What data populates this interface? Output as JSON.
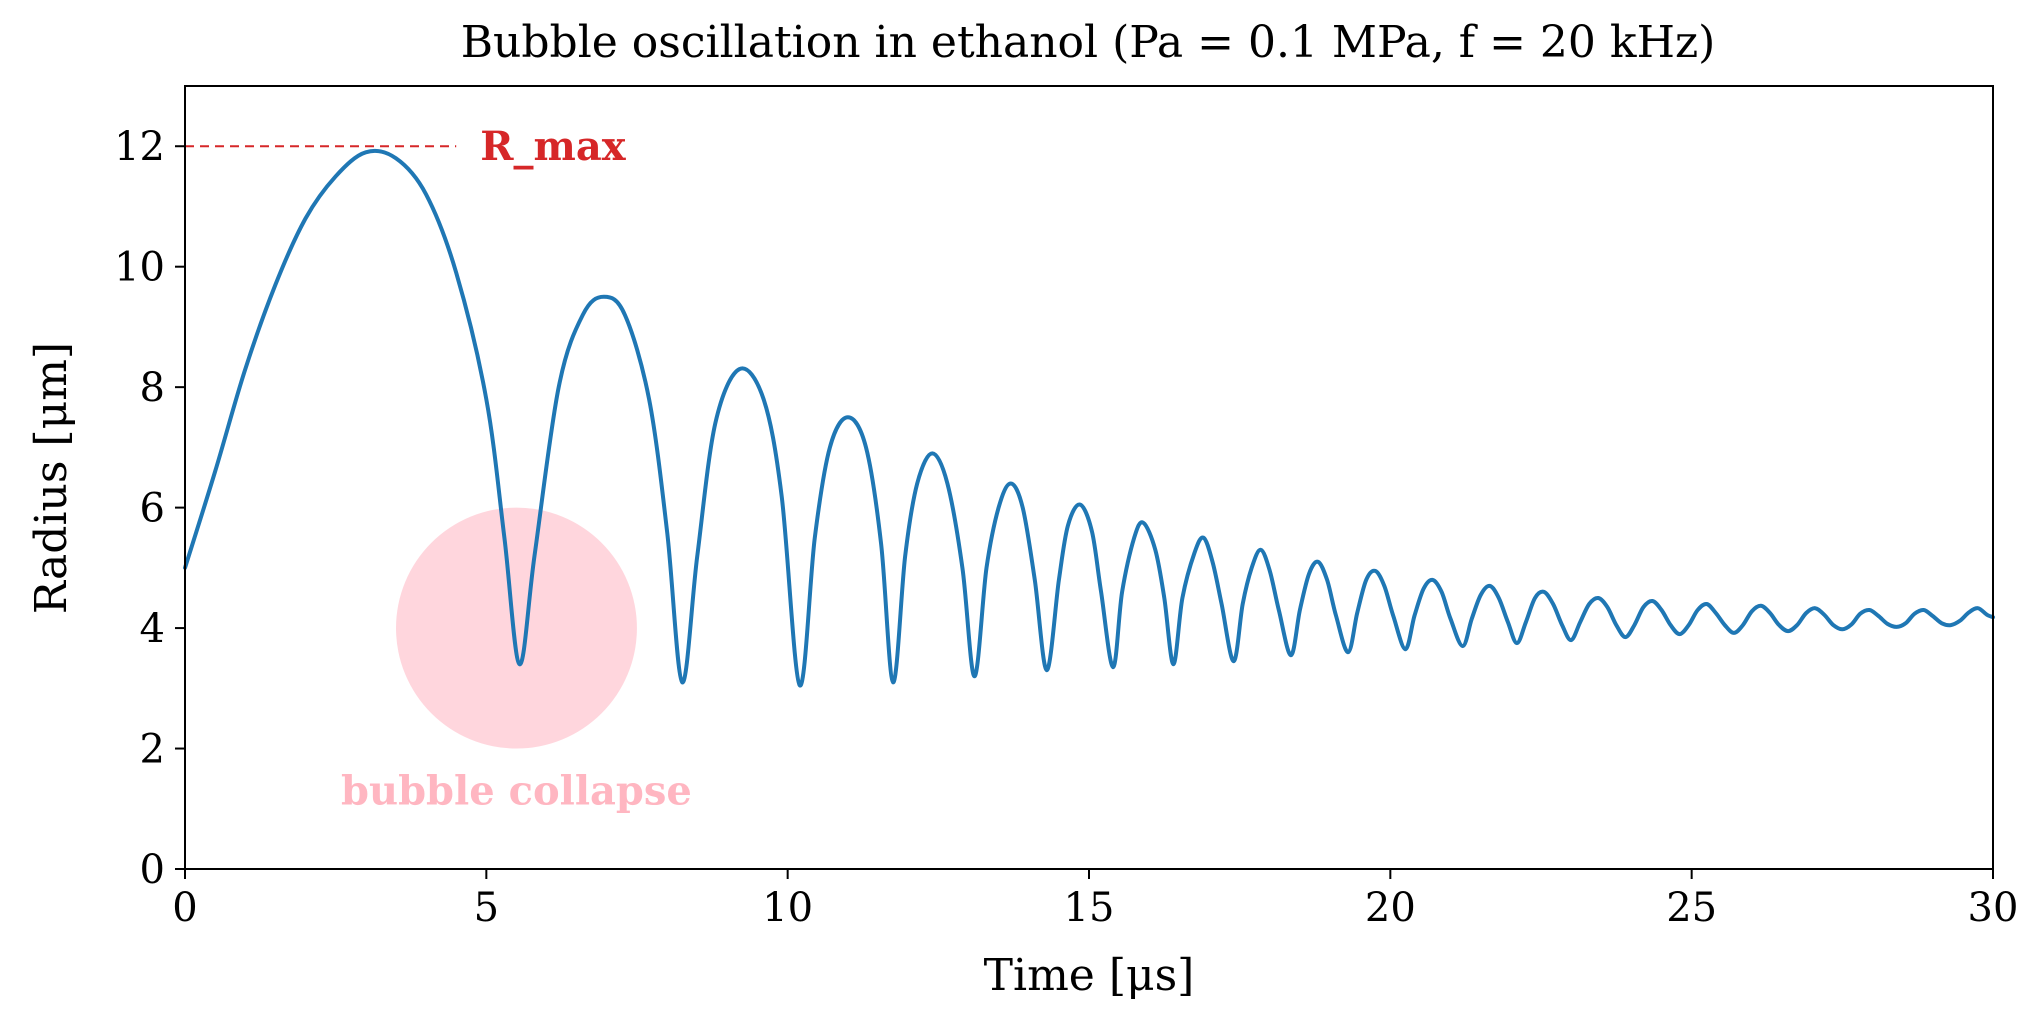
{
  "chart_data": {
    "type": "line",
    "title": "Bubble oscillation in ethanol (Pa = 0.1 MPa, f = 20 kHz)",
    "xlabel": "Time [μs]",
    "ylabel": "Radius [μm]",
    "xlim": [
      0,
      30
    ],
    "ylim": [
      0,
      13
    ],
    "xticks": [
      0,
      5,
      10,
      15,
      20,
      25,
      30
    ],
    "yticks": [
      0,
      2,
      4,
      6,
      8,
      10,
      12
    ],
    "grid": false,
    "colors": {
      "line": "#1f77b4",
      "rmax": "#d62728",
      "collapse_fill": "#ffc0cb",
      "collapse_text": "#ffb6c1"
    },
    "series": [
      {
        "name": "Radius",
        "points": [
          [
            0.0,
            5.0
          ],
          [
            0.5,
            6.6
          ],
          [
            1.0,
            8.3
          ],
          [
            1.5,
            9.7
          ],
          [
            2.0,
            10.8
          ],
          [
            2.5,
            11.5
          ],
          [
            3.0,
            11.9
          ],
          [
            3.5,
            11.8
          ],
          [
            4.0,
            11.2
          ],
          [
            4.5,
            9.9
          ],
          [
            5.0,
            7.8
          ],
          [
            5.3,
            5.5
          ],
          [
            5.55,
            3.4
          ],
          [
            5.8,
            5.2
          ],
          [
            6.2,
            8.0
          ],
          [
            6.6,
            9.2
          ],
          [
            6.95,
            9.5
          ],
          [
            7.3,
            9.2
          ],
          [
            7.7,
            7.8
          ],
          [
            8.0,
            5.6
          ],
          [
            8.25,
            3.1
          ],
          [
            8.5,
            5.2
          ],
          [
            8.8,
            7.4
          ],
          [
            9.2,
            8.3
          ],
          [
            9.6,
            7.8
          ],
          [
            9.9,
            6.2
          ],
          [
            10.2,
            3.05
          ],
          [
            10.45,
            5.5
          ],
          [
            10.7,
            7.0
          ],
          [
            11.0,
            7.5
          ],
          [
            11.3,
            7.0
          ],
          [
            11.55,
            5.4
          ],
          [
            11.75,
            3.1
          ],
          [
            11.95,
            5.2
          ],
          [
            12.15,
            6.4
          ],
          [
            12.4,
            6.9
          ],
          [
            12.65,
            6.4
          ],
          [
            12.9,
            5.0
          ],
          [
            13.1,
            3.2
          ],
          [
            13.3,
            5.0
          ],
          [
            13.5,
            6.0
          ],
          [
            13.7,
            6.4
          ],
          [
            13.9,
            6.0
          ],
          [
            14.1,
            4.8
          ],
          [
            14.3,
            3.3
          ],
          [
            14.5,
            4.8
          ],
          [
            14.65,
            5.7
          ],
          [
            14.85,
            6.05
          ],
          [
            15.05,
            5.6
          ],
          [
            15.2,
            4.6
          ],
          [
            15.4,
            3.35
          ],
          [
            15.55,
            4.6
          ],
          [
            15.75,
            5.5
          ],
          [
            15.9,
            5.75
          ],
          [
            16.1,
            5.3
          ],
          [
            16.25,
            4.5
          ],
          [
            16.4,
            3.4
          ],
          [
            16.55,
            4.5
          ],
          [
            16.75,
            5.25
          ],
          [
            16.9,
            5.5
          ],
          [
            17.05,
            5.1
          ],
          [
            17.2,
            4.4
          ],
          [
            17.4,
            3.45
          ],
          [
            17.55,
            4.4
          ],
          [
            17.7,
            5.0
          ],
          [
            17.85,
            5.3
          ],
          [
            18.0,
            4.95
          ],
          [
            18.15,
            4.3
          ],
          [
            18.35,
            3.55
          ],
          [
            18.5,
            4.3
          ],
          [
            18.65,
            4.9
          ],
          [
            18.8,
            5.1
          ],
          [
            18.95,
            4.8
          ],
          [
            19.1,
            4.2
          ],
          [
            19.3,
            3.6
          ],
          [
            19.45,
            4.25
          ],
          [
            19.6,
            4.8
          ],
          [
            19.75,
            4.95
          ],
          [
            19.9,
            4.7
          ],
          [
            20.05,
            4.2
          ],
          [
            20.25,
            3.65
          ],
          [
            20.4,
            4.2
          ],
          [
            20.55,
            4.65
          ],
          [
            20.7,
            4.8
          ],
          [
            20.85,
            4.6
          ],
          [
            21.0,
            4.15
          ],
          [
            21.2,
            3.7
          ],
          [
            21.35,
            4.15
          ],
          [
            21.5,
            4.55
          ],
          [
            21.65,
            4.7
          ],
          [
            21.8,
            4.5
          ],
          [
            21.95,
            4.1
          ],
          [
            22.1,
            3.75
          ],
          [
            22.25,
            4.1
          ],
          [
            22.4,
            4.5
          ],
          [
            22.55,
            4.6
          ],
          [
            22.7,
            4.4
          ],
          [
            22.85,
            4.05
          ],
          [
            23.0,
            3.8
          ],
          [
            23.15,
            4.1
          ],
          [
            23.3,
            4.4
          ],
          [
            23.45,
            4.5
          ],
          [
            23.6,
            4.35
          ],
          [
            23.75,
            4.05
          ],
          [
            23.9,
            3.85
          ],
          [
            24.05,
            4.05
          ],
          [
            24.2,
            4.35
          ],
          [
            24.35,
            4.45
          ],
          [
            24.5,
            4.3
          ],
          [
            24.65,
            4.05
          ],
          [
            24.8,
            3.9
          ],
          [
            24.95,
            4.05
          ],
          [
            25.1,
            4.3
          ],
          [
            25.25,
            4.4
          ],
          [
            25.4,
            4.25
          ],
          [
            25.55,
            4.05
          ],
          [
            25.7,
            3.92
          ],
          [
            25.85,
            4.05
          ],
          [
            26.0,
            4.28
          ],
          [
            26.15,
            4.37
          ],
          [
            26.3,
            4.25
          ],
          [
            26.45,
            4.05
          ],
          [
            26.6,
            3.95
          ],
          [
            26.75,
            4.05
          ],
          [
            26.9,
            4.25
          ],
          [
            27.05,
            4.33
          ],
          [
            27.2,
            4.22
          ],
          [
            27.35,
            4.05
          ],
          [
            27.5,
            3.98
          ],
          [
            27.65,
            4.06
          ],
          [
            27.8,
            4.24
          ],
          [
            27.95,
            4.3
          ],
          [
            28.1,
            4.2
          ],
          [
            28.25,
            4.07
          ],
          [
            28.4,
            4.02
          ],
          [
            28.55,
            4.08
          ],
          [
            28.7,
            4.24
          ],
          [
            28.85,
            4.3
          ],
          [
            29.0,
            4.2
          ],
          [
            29.15,
            4.08
          ],
          [
            29.3,
            4.05
          ],
          [
            29.45,
            4.12
          ],
          [
            29.6,
            4.26
          ],
          [
            29.75,
            4.33
          ],
          [
            29.9,
            4.22
          ],
          [
            30.0,
            4.18
          ]
        ]
      }
    ],
    "annotations": {
      "rmax": {
        "label": "R_max",
        "line_y": 12,
        "line_x": [
          0,
          4.5
        ],
        "label_x": 4.9,
        "label_y": 12
      },
      "collapse": {
        "label": "bubble collapse",
        "center_x": 5.5,
        "center_y": 4,
        "radius_y_units": 2,
        "label_x": 5.5,
        "label_y": 1.3
      }
    }
  }
}
